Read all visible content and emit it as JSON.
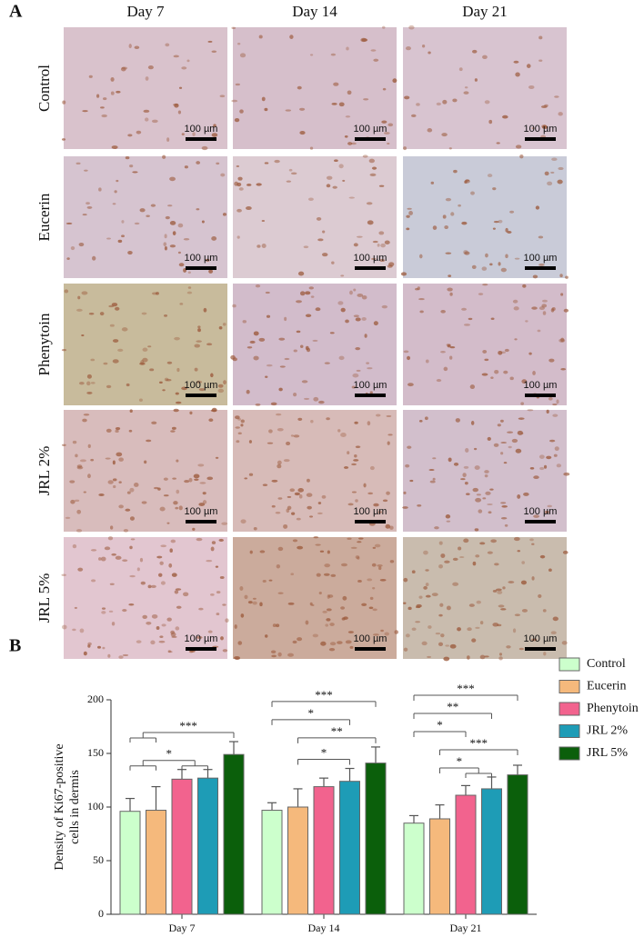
{
  "panel_a": {
    "label": "A",
    "columns": [
      "Day 7",
      "Day 14",
      "Day 21"
    ],
    "rows": [
      "Control",
      "Eucerin",
      "Phenytoin",
      "JRL 2%",
      "JRL 5%"
    ],
    "scale_bar": "100 µm"
  },
  "panel_b": {
    "label": "B"
  },
  "chart_data": {
    "type": "bar",
    "ylabel": [
      "Density of Ki67-positive",
      "cells in dermis"
    ],
    "categories": [
      "Day 7",
      "Day 14",
      "Day 21"
    ],
    "series": [
      {
        "name": "Control",
        "color": "#ccffcc",
        "values": [
          96,
          97,
          85
        ],
        "errors": [
          12,
          7,
          7
        ]
      },
      {
        "name": "Eucerin",
        "color": "#f5b97c",
        "values": [
          97,
          100,
          89
        ],
        "errors": [
          22,
          17,
          13
        ]
      },
      {
        "name": "Phenytoin",
        "color": "#f2638e",
        "values": [
          126,
          119,
          111
        ],
        "errors": [
          9,
          8,
          9
        ]
      },
      {
        "name": "JRL 2%",
        "color": "#1e9cb6",
        "values": [
          127,
          124,
          117
        ],
        "errors": [
          8,
          12,
          11
        ]
      },
      {
        "name": "JRL 5%",
        "color": "#0b5f0b",
        "values": [
          149,
          141,
          130
        ],
        "errors": [
          12,
          15,
          9
        ]
      }
    ],
    "ylim": [
      0,
      200
    ],
    "yticks": [
      0,
      50,
      100,
      150,
      200
    ],
    "legend": "right",
    "significance": [
      {
        "category": 0,
        "from": [
          0,
          1
        ],
        "to": [
          4
        ],
        "label": "***"
      },
      {
        "category": 0,
        "from": [
          0,
          1
        ],
        "to": [
          2,
          3
        ],
        "label": "*"
      },
      {
        "category": 1,
        "from": [
          0
        ],
        "to": [
          4
        ],
        "label": "***"
      },
      {
        "category": 1,
        "from": [
          0
        ],
        "to": [
          3
        ],
        "label": "*"
      },
      {
        "category": 1,
        "from": [
          1
        ],
        "to": [
          4
        ],
        "label": "**"
      },
      {
        "category": 1,
        "from": [
          1
        ],
        "to": [
          3
        ],
        "label": "*"
      },
      {
        "category": 2,
        "from": [
          0
        ],
        "to": [
          4
        ],
        "label": "***"
      },
      {
        "category": 2,
        "from": [
          0
        ],
        "to": [
          3
        ],
        "label": "**"
      },
      {
        "category": 2,
        "from": [
          0
        ],
        "to": [
          2
        ],
        "label": "*"
      },
      {
        "category": 2,
        "from": [
          1
        ],
        "to": [
          4
        ],
        "label": "***"
      },
      {
        "category": 2,
        "from": [
          1
        ],
        "to": [
          2,
          3
        ],
        "label": "*"
      }
    ]
  }
}
